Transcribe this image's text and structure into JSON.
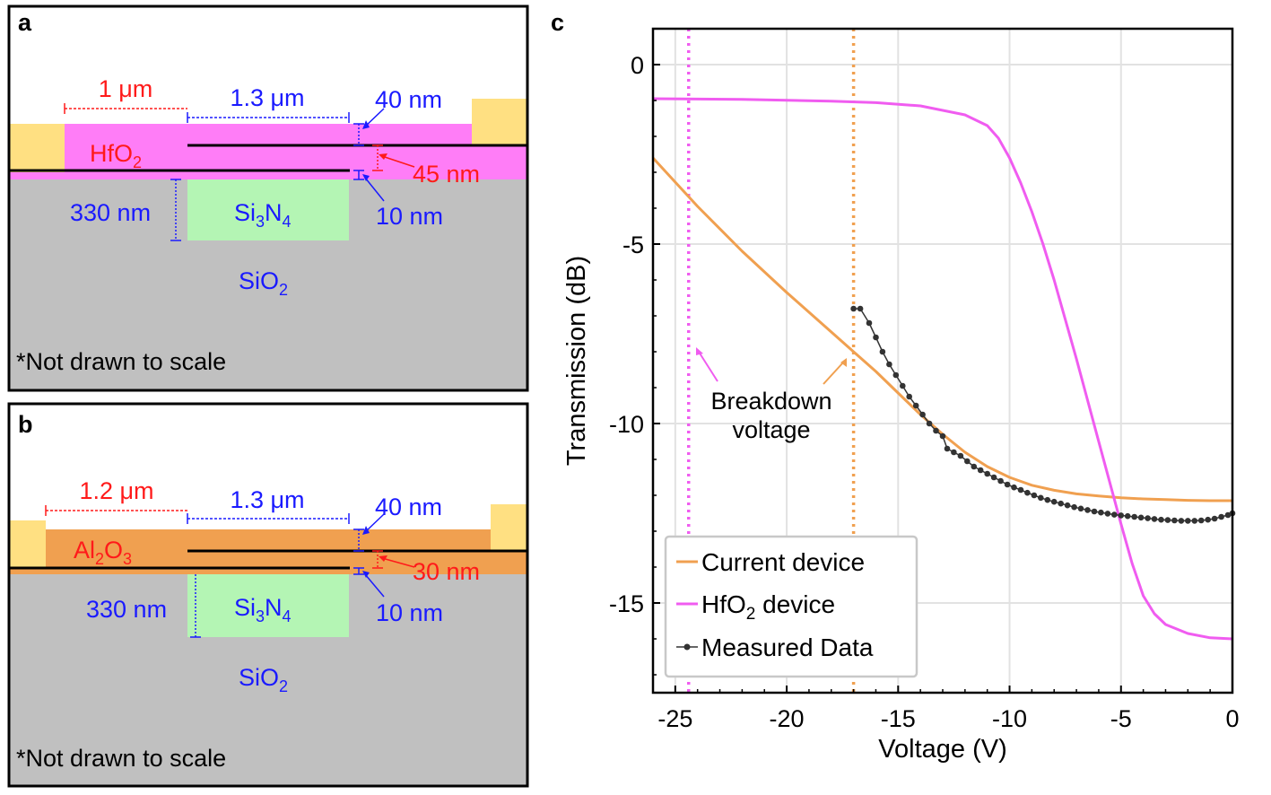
{
  "colors": {
    "hfo2": "#ff7df7",
    "al2o3": "#f0a050",
    "oxide_bg": "#c0c0c0",
    "sin": "#b4f5b4",
    "electrode": "#ffe082",
    "dim_red": "#ff1a1a",
    "dim_blue": "#1a1aff",
    "curve_orange": "#f0a050",
    "curve_magenta": "#f05cf0",
    "measured": "#333333",
    "vline_magenta": "#f05cf0",
    "vline_orange": "#f0a050"
  },
  "panel_a": {
    "label": "a",
    "layer_label": "HfO",
    "layer_sub": "2",
    "gap_label": "1 μm",
    "width_label": "1.3 μm",
    "top_thick": "40 nm",
    "layer_thick": "45 nm",
    "bottom_thick": "10 nm",
    "sin_height": "330 nm",
    "sin_text": [
      "Si",
      "3",
      "N",
      "4"
    ],
    "sio2_text": [
      "SiO",
      "2"
    ],
    "note": "*Not drawn to scale"
  },
  "panel_b": {
    "label": "b",
    "layer_label": [
      "Al",
      "2",
      "O",
      "3"
    ],
    "gap_label": "1.2 μm",
    "width_label": "1.3 μm",
    "top_thick": "40 nm",
    "layer_thick": "30 nm",
    "bottom_thick": "10 nm",
    "sin_height": "330 nm",
    "sin_text": [
      "Si",
      "3",
      "N",
      "4"
    ],
    "sio2_text": [
      "SiO",
      "2"
    ],
    "note": "*Not drawn to scale"
  },
  "panel_c": {
    "label": "c",
    "annotation_line1": "Breakdown",
    "annotation_line2": "voltage",
    "legend": {
      "current": "Current device",
      "hfo2_prefix": "HfO",
      "hfo2_sub": "2",
      "hfo2_suffix": " device",
      "measured": "Measured Data"
    }
  },
  "chart_data": {
    "type": "line",
    "xlabel": "Voltage (V)",
    "ylabel": "Transmission (dB)",
    "xlim": [
      -26,
      0
    ],
    "ylim": [
      -17.5,
      1
    ],
    "xticks": [
      -25,
      -20,
      -15,
      -10,
      -5,
      0
    ],
    "yticks": [
      0,
      -5,
      -10,
      -15
    ],
    "grid": true,
    "legend_position": "bottom-left",
    "vertical_lines": [
      {
        "name": "HfO2 breakdown voltage",
        "x": -24.4
      },
      {
        "name": "Current breakdown voltage",
        "x": -17
      }
    ],
    "series": [
      {
        "name": "Current device",
        "x": [
          -26,
          -24,
          -22,
          -20,
          -18,
          -17,
          -16,
          -15,
          -14,
          -13,
          -12,
          -11,
          -10,
          -9,
          -8,
          -7,
          -6,
          -5,
          -4,
          -3,
          -2,
          -1,
          0
        ],
        "y": [
          -2.6,
          -3.95,
          -5.2,
          -6.35,
          -7.45,
          -8.0,
          -8.55,
          -9.15,
          -9.75,
          -10.3,
          -10.8,
          -11.2,
          -11.5,
          -11.72,
          -11.86,
          -11.96,
          -12.02,
          -12.07,
          -12.1,
          -12.12,
          -12.14,
          -12.15,
          -12.15
        ]
      },
      {
        "name": "HfO2 device",
        "x": [
          -26,
          -22,
          -18,
          -16,
          -14,
          -12,
          -11,
          -10.5,
          -10,
          -9.5,
          -9,
          -8.5,
          -8,
          -7,
          -6,
          -5,
          -4.5,
          -4,
          -3.5,
          -3,
          -2,
          -1,
          0
        ],
        "y": [
          -0.95,
          -0.97,
          -1.02,
          -1.06,
          -1.15,
          -1.4,
          -1.7,
          -2.05,
          -2.6,
          -3.3,
          -4.1,
          -5.0,
          -6.0,
          -8.2,
          -10.5,
          -12.8,
          -13.9,
          -14.8,
          -15.3,
          -15.6,
          -15.85,
          -15.97,
          -16.0
        ]
      },
      {
        "name": "Measured Data",
        "x": [
          -17,
          -16.7,
          -16.3,
          -16.0,
          -15.7,
          -15.4,
          -15.1,
          -14.8,
          -14.5,
          -14.2,
          -13.9,
          -13.6,
          -13.3,
          -13.0,
          -12.8,
          -12.5,
          -12.2,
          -11.9,
          -11.6,
          -11.3,
          -11.0,
          -10.7,
          -10.4,
          -10.1,
          -9.8,
          -9.5,
          -9.2,
          -8.9,
          -8.6,
          -8.3,
          -8.0,
          -7.7,
          -7.4,
          -7.1,
          -6.8,
          -6.5,
          -6.2,
          -5.9,
          -5.6,
          -5.3,
          -5.0,
          -4.7,
          -4.4,
          -4.1,
          -3.8,
          -3.5,
          -3.2,
          -2.9,
          -2.6,
          -2.3,
          -2.0,
          -1.7,
          -1.4,
          -1.1,
          -0.8,
          -0.5,
          -0.2,
          0
        ],
        "y": [
          -6.8,
          -6.8,
          -7.2,
          -7.6,
          -8.0,
          -8.35,
          -8.65,
          -8.95,
          -9.25,
          -9.5,
          -9.75,
          -10.0,
          -10.2,
          -10.35,
          -10.7,
          -10.8,
          -10.9,
          -11.05,
          -11.2,
          -11.3,
          -11.4,
          -11.5,
          -11.6,
          -11.7,
          -11.78,
          -11.85,
          -11.93,
          -12.0,
          -12.07,
          -12.13,
          -12.18,
          -12.23,
          -12.28,
          -12.33,
          -12.37,
          -12.41,
          -12.45,
          -12.48,
          -12.51,
          -12.54,
          -12.56,
          -12.58,
          -12.6,
          -12.62,
          -12.64,
          -12.66,
          -12.68,
          -12.69,
          -12.7,
          -12.71,
          -12.71,
          -12.71,
          -12.7,
          -12.68,
          -12.65,
          -12.6,
          -12.55,
          -12.5
        ]
      }
    ]
  }
}
